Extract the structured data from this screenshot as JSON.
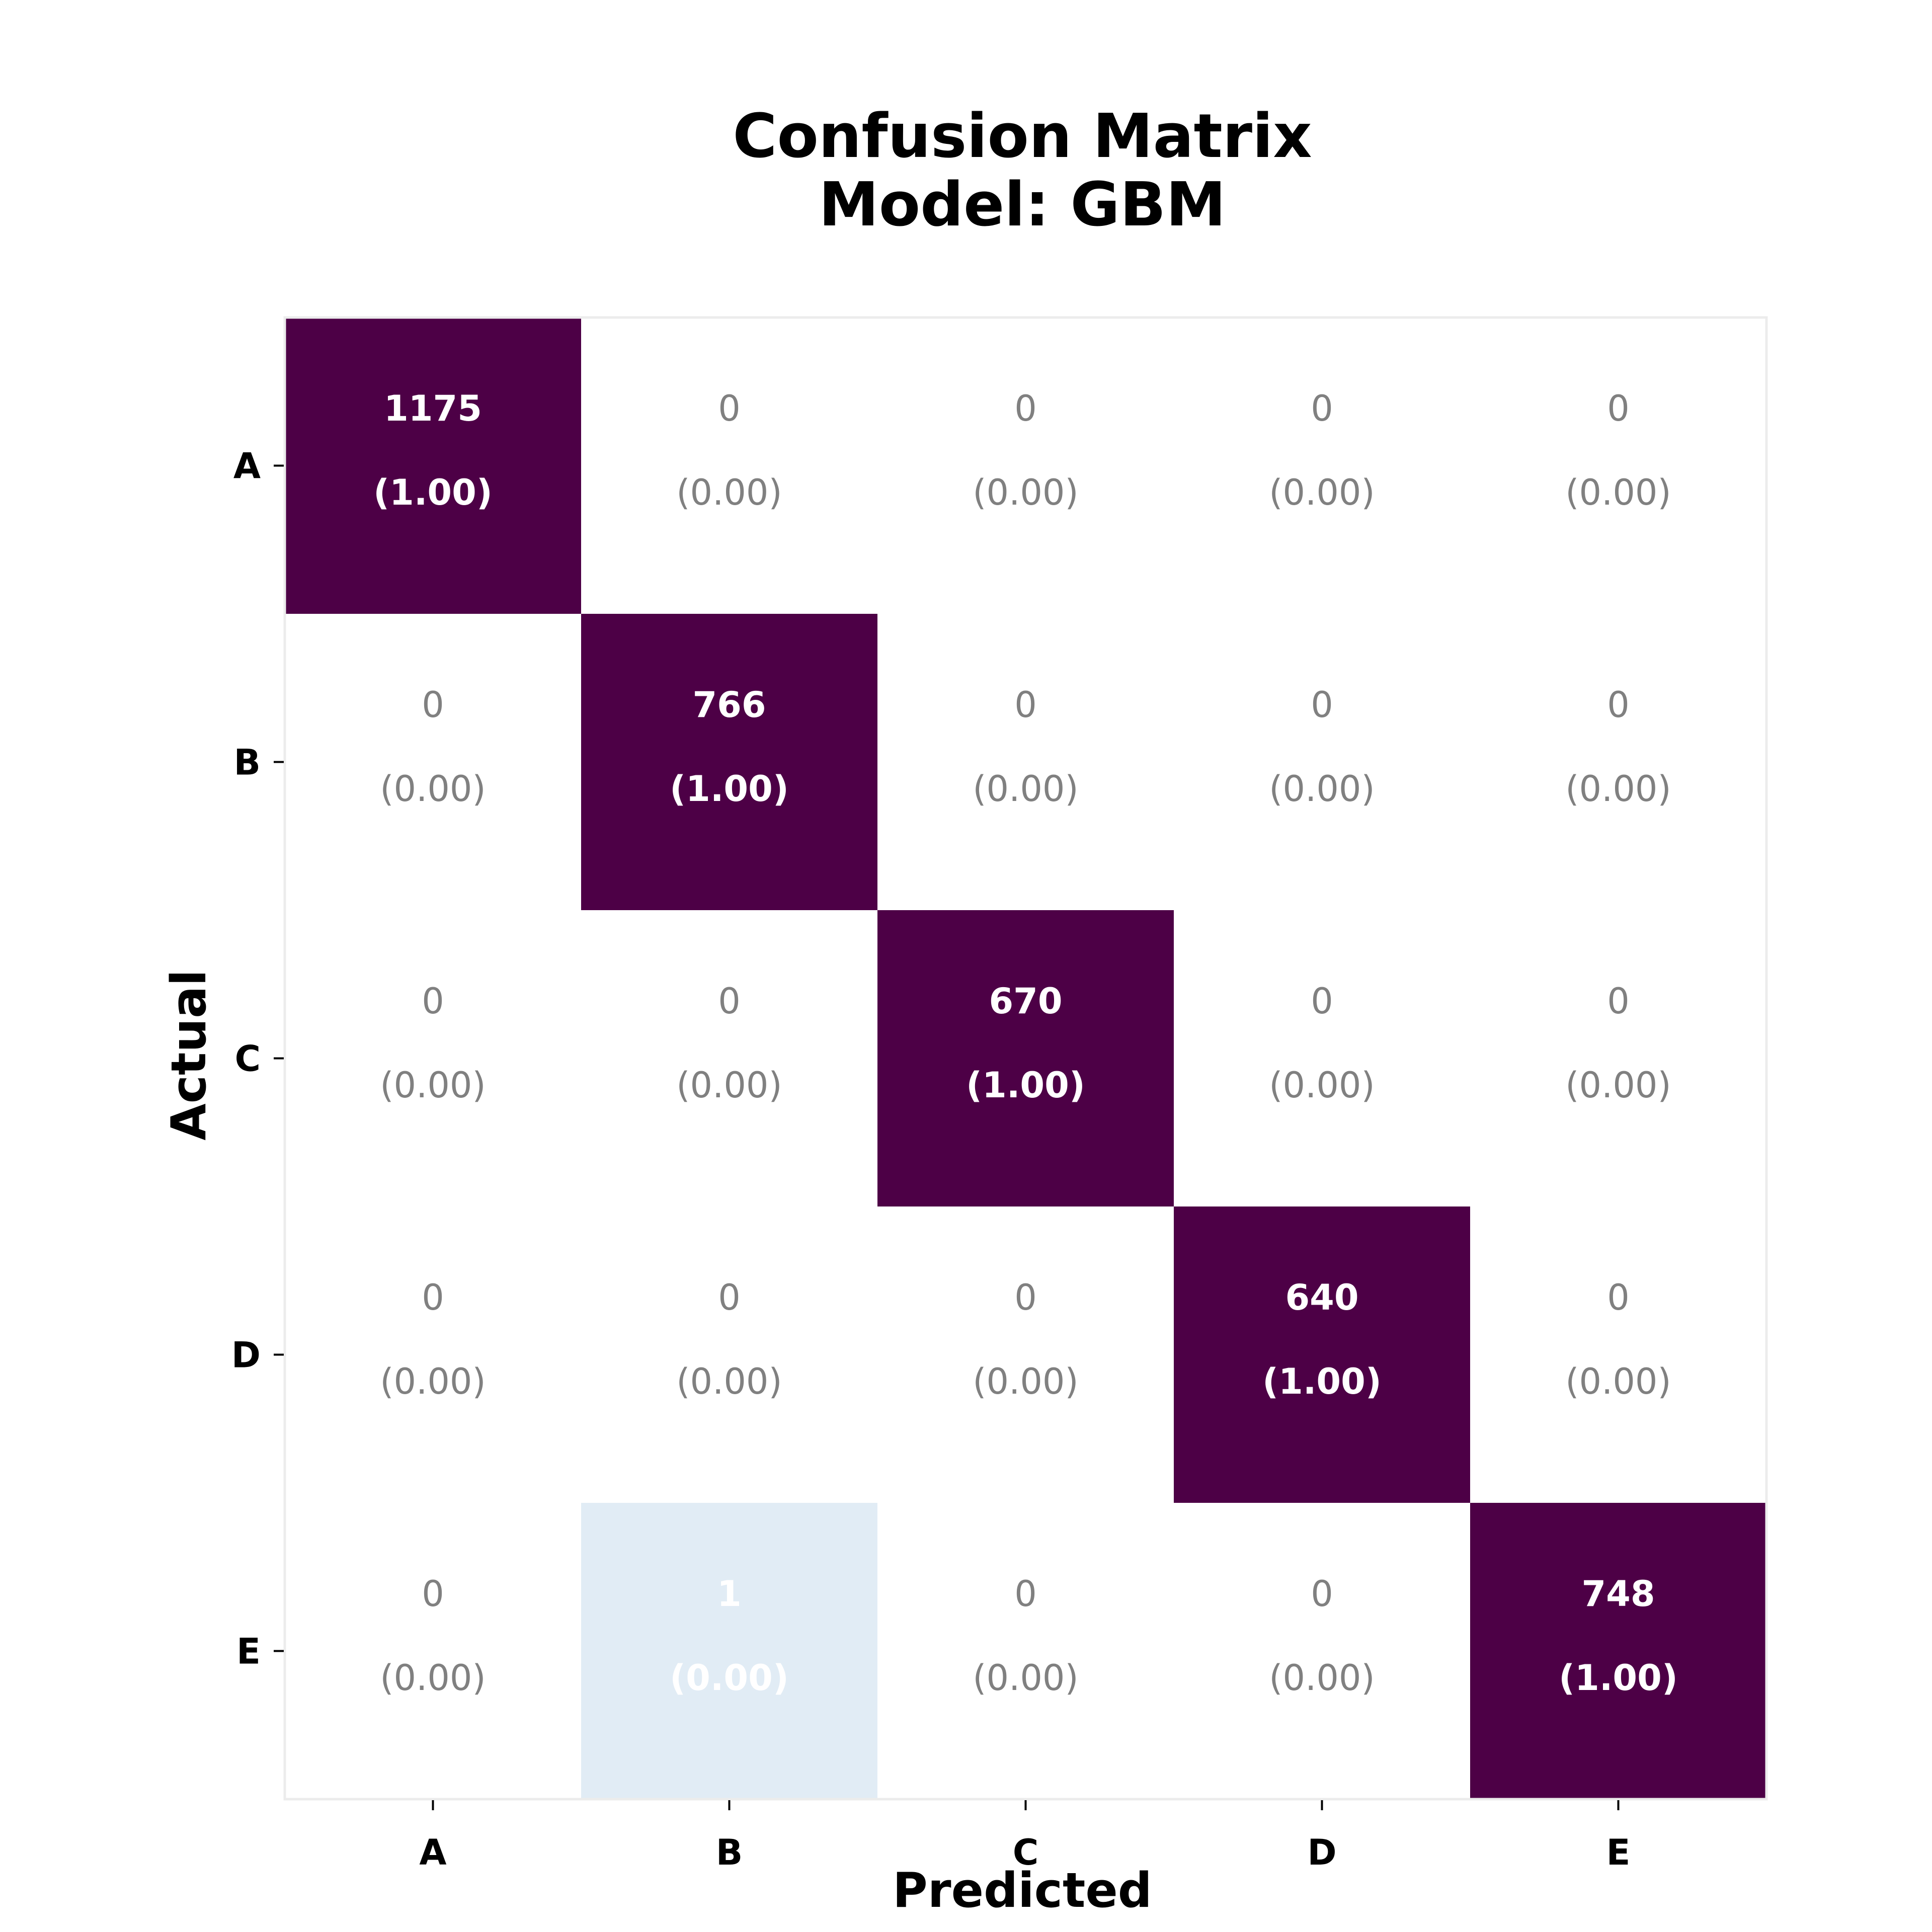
{
  "chart_data": {
    "type": "heatmap",
    "title": [
      "Confusion Matrix",
      "Model: GBM"
    ],
    "xlabel": "Predicted",
    "ylabel": "Actual",
    "x_categories": [
      "A",
      "B",
      "C",
      "D",
      "E"
    ],
    "y_categories": [
      "A",
      "B",
      "C",
      "D",
      "E"
    ],
    "counts": [
      [
        1175,
        0,
        0,
        0,
        0
      ],
      [
        0,
        766,
        0,
        0,
        0
      ],
      [
        0,
        0,
        670,
        0,
        0
      ],
      [
        0,
        0,
        0,
        640,
        0
      ],
      [
        0,
        1,
        0,
        0,
        748
      ]
    ],
    "normalized": [
      [
        "1.00",
        "0.00",
        "0.00",
        "0.00",
        "0.00"
      ],
      [
        "0.00",
        "1.00",
        "0.00",
        "0.00",
        "0.00"
      ],
      [
        "0.00",
        "0.00",
        "1.00",
        "0.00",
        "0.00"
      ],
      [
        "0.00",
        "0.00",
        "0.00",
        "1.00",
        "0.00"
      ],
      [
        "0.00",
        "0.00",
        "0.00",
        "0.00",
        "1.00"
      ]
    ],
    "colors": {
      "high": "#4d0046",
      "light": "#e1ecf5",
      "empty": "#ffffff",
      "text_on_filled": "#ffffff",
      "text_on_empty": "#808080",
      "frame": "#ececec"
    },
    "grid": false,
    "legend": "none"
  }
}
